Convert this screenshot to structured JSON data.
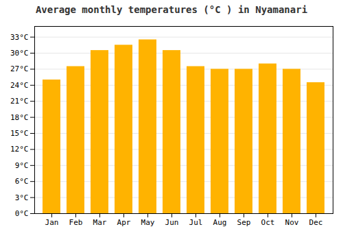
{
  "chart_data": {
    "type": "bar",
    "title": "Average monthly temperatures (°C ) in Nyamanari",
    "categories": [
      "Jan",
      "Feb",
      "Mar",
      "Apr",
      "May",
      "Jun",
      "Jul",
      "Aug",
      "Sep",
      "Oct",
      "Nov",
      "Dec"
    ],
    "values": [
      25.0,
      27.5,
      30.5,
      31.5,
      32.5,
      30.5,
      27.5,
      27.0,
      27.0,
      28.0,
      27.0,
      24.5
    ],
    "color": "#FFB300",
    "ylim": [
      0,
      35
    ],
    "yticks": [
      {
        "value": 0,
        "label": "0°C"
      },
      {
        "value": 3,
        "label": "3°C"
      },
      {
        "value": 6,
        "label": "6°C"
      },
      {
        "value": 9,
        "label": "9°C"
      },
      {
        "value": 12,
        "label": "12°C"
      },
      {
        "value": 15,
        "label": "15°C"
      },
      {
        "value": 18,
        "label": "18°C"
      },
      {
        "value": 21,
        "label": "21°C"
      },
      {
        "value": 24,
        "label": "24°C"
      },
      {
        "value": 27,
        "label": "27°C"
      },
      {
        "value": 30,
        "label": "30°C"
      },
      {
        "value": 33,
        "label": "33°C"
      }
    ],
    "grid": true
  }
}
